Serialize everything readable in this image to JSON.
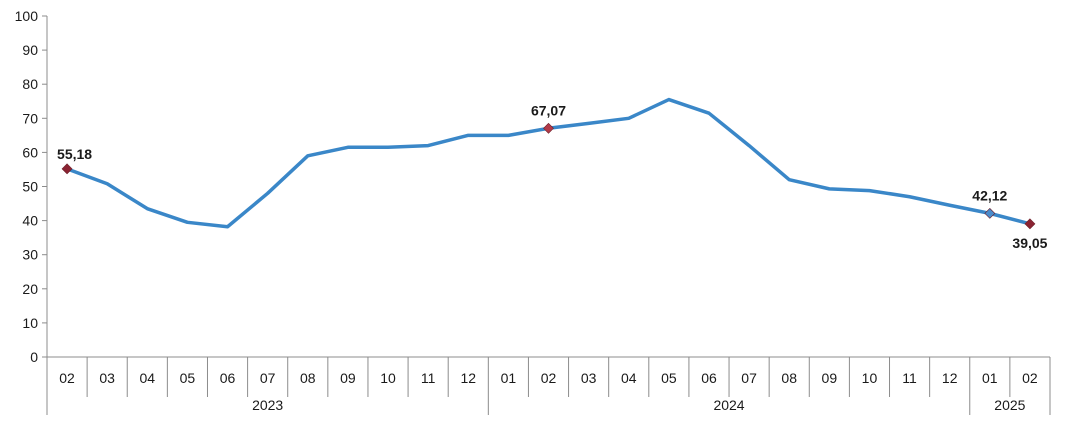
{
  "chart_data": {
    "type": "line",
    "title": "",
    "xlabel": "",
    "ylabel": "",
    "ylim": [
      0,
      100
    ],
    "y_ticks": [
      "0",
      "10",
      "20",
      "30",
      "40",
      "50",
      "60",
      "70",
      "80",
      "90",
      "100"
    ],
    "grid": false,
    "legend": "none",
    "line_color": "#3a87c8",
    "highlight_marker_color": "#b23a48",
    "start_marker_color": "#8b2332",
    "end_marker_color": "#8b2332",
    "secondary_marker_color": "#4a8ccc",
    "categories": [
      "02",
      "03",
      "04",
      "05",
      "06",
      "07",
      "08",
      "09",
      "10",
      "11",
      "12",
      "01",
      "02",
      "03",
      "04",
      "05",
      "06",
      "07",
      "08",
      "09",
      "10",
      "11",
      "12",
      "01",
      "02"
    ],
    "years": [
      {
        "label": "2023",
        "count": 11
      },
      {
        "label": "2024",
        "count": 12
      },
      {
        "label": "2025",
        "count": 2
      }
    ],
    "series": [
      {
        "values": [
          55.18,
          50.8,
          43.5,
          39.5,
          38.2,
          48.0,
          59.0,
          61.5,
          61.5,
          62.0,
          65.0,
          65.0,
          67.07,
          68.5,
          70.0,
          75.5,
          71.5,
          62.0,
          52.0,
          49.3,
          48.8,
          47.0,
          44.5,
          42.12,
          39.05
        ]
      }
    ],
    "annotations": [
      {
        "index": 0,
        "label": "55,18",
        "marker": "start"
      },
      {
        "index": 12,
        "label": "67,07",
        "marker": "highlight"
      },
      {
        "index": 23,
        "label": "42,12",
        "marker": "secondary"
      },
      {
        "index": 24,
        "label": "39,05",
        "marker": "end"
      }
    ]
  }
}
